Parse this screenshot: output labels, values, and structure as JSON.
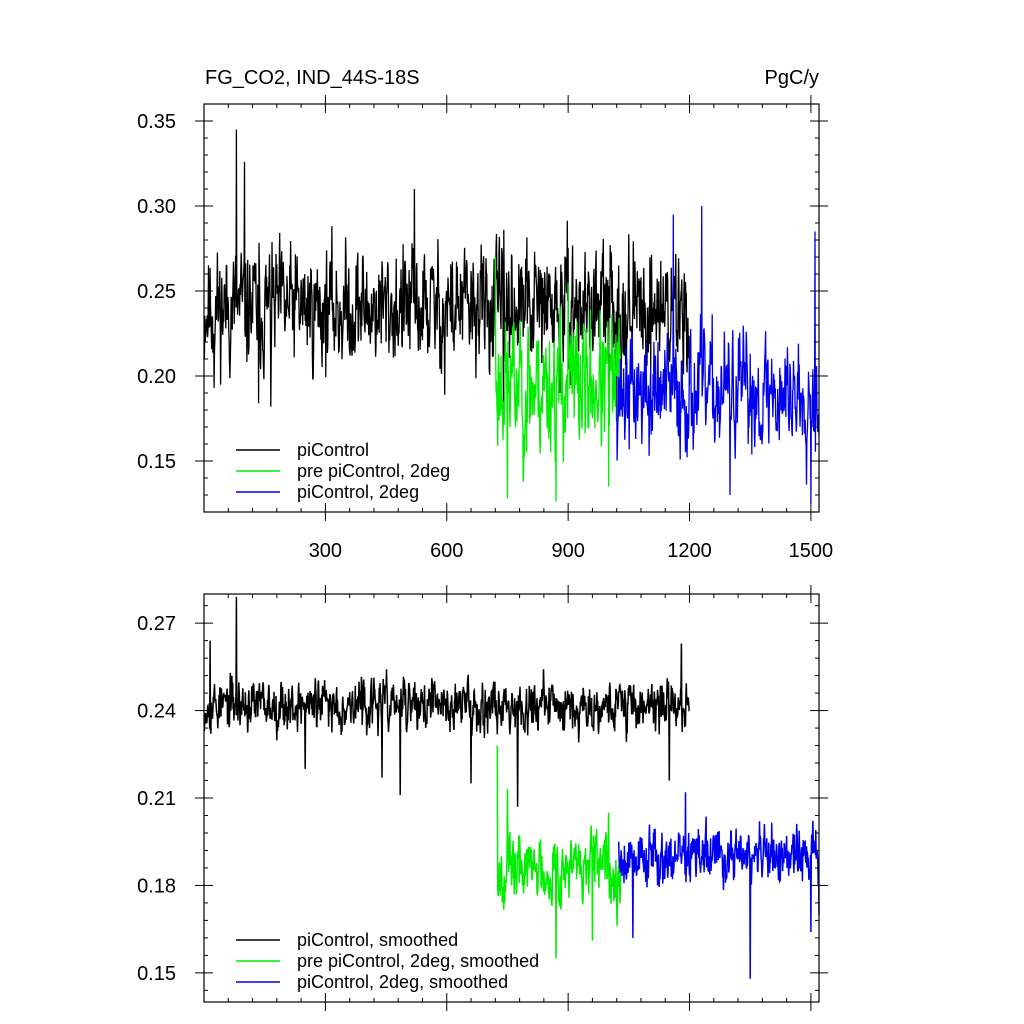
{
  "chart_data": [
    {
      "type": "line",
      "title_left": "FG_CO2, IND_44S-18S",
      "title_right": "PgC/y",
      "xlim": [
        0,
        1520
      ],
      "ylim": [
        0.12,
        0.36
      ],
      "xticks": [
        300,
        600,
        900,
        1200,
        1500
      ],
      "yticks": [
        0.15,
        0.2,
        0.25,
        0.3,
        0.35
      ],
      "ytick_labels": [
        "0.15",
        "0.20",
        "0.25",
        "0.30",
        "0.35"
      ],
      "legend_position": "bottom-left",
      "series": [
        {
          "name": "piControl",
          "color": "#000000",
          "x_range": [
            1,
            1200
          ],
          "mean": 0.24,
          "spread": 0.028,
          "seed": 11,
          "points": [
            [
              1,
              0.21
            ],
            [
              25,
              0.193
            ],
            [
              80,
              0.345
            ],
            [
              100,
              0.326
            ],
            [
              135,
              0.184
            ],
            [
              165,
              0.182
            ],
            [
              520,
              0.31
            ],
            [
              595,
              0.189
            ],
            [
              740,
              0.184
            ],
            [
              880,
              0.19
            ],
            [
              1000,
              0.195
            ],
            [
              1200,
              0.195
            ]
          ]
        },
        {
          "name": "pre piControl, 2deg",
          "color": "#00ee00",
          "x_range": [
            720,
            1030
          ],
          "mean": 0.195,
          "spread": 0.032,
          "seed": 23,
          "points": [
            [
              720,
              0.27
            ],
            [
              740,
              0.185
            ],
            [
              750,
              0.128
            ],
            [
              780,
              0.21
            ],
            [
              870,
              0.126
            ],
            [
              900,
              0.255
            ],
            [
              1000,
              0.135
            ],
            [
              1030,
              0.2
            ]
          ]
        },
        {
          "name": "piControl, 2deg",
          "color": "#0000ee",
          "x_range": [
            1020,
            1520
          ],
          "mean": 0.19,
          "spread": 0.027,
          "seed": 37,
          "points": [
            [
              1020,
              0.2
            ],
            [
              1100,
              0.153
            ],
            [
              1160,
              0.295
            ],
            [
              1230,
              0.3
            ],
            [
              1300,
              0.13
            ],
            [
              1500,
              0.125
            ],
            [
              1510,
              0.285
            ],
            [
              1520,
              0.165
            ]
          ]
        }
      ]
    },
    {
      "type": "line",
      "xlim": [
        0,
        1520
      ],
      "ylim": [
        0.14,
        0.28
      ],
      "xticks": [
        300,
        600,
        900,
        1200,
        1500
      ],
      "yticks": [
        0.15,
        0.18,
        0.21,
        0.24,
        0.27
      ],
      "ytick_labels": [
        "0.15",
        "0.18",
        "0.21",
        "0.24",
        "0.27"
      ],
      "legend_position": "bottom-left",
      "series": [
        {
          "name": "piControl, smoothed",
          "color": "#000000",
          "x_range": [
            1,
            1200
          ],
          "mean": 0.242,
          "spread": 0.007,
          "seed": 53,
          "points": [
            [
              1,
              0.233
            ],
            [
              15,
              0.264
            ],
            [
              80,
              0.279
            ],
            [
              150,
              0.24
            ],
            [
              250,
              0.22
            ],
            [
              440,
              0.217
            ],
            [
              485,
              0.211
            ],
            [
              660,
              0.215
            ],
            [
              775,
              0.207
            ],
            [
              1150,
              0.216
            ],
            [
              1180,
              0.263
            ],
            [
              1200,
              0.24
            ]
          ]
        },
        {
          "name": "pre piControl, 2deg, smoothed",
          "color": "#00ee00",
          "x_range": [
            725,
            1030
          ],
          "mean": 0.186,
          "spread": 0.009,
          "seed": 67,
          "points": [
            [
              725,
              0.228
            ],
            [
              735,
              0.19
            ],
            [
              750,
              0.213
            ],
            [
              760,
              0.18
            ],
            [
              870,
              0.155
            ],
            [
              960,
              0.161
            ],
            [
              1000,
              0.205
            ],
            [
              1030,
              0.19
            ]
          ]
        },
        {
          "name": "piControl, 2deg, smoothed",
          "color": "#0000ee",
          "x_range": [
            1025,
            1520
          ],
          "mean": 0.19,
          "spread": 0.008,
          "seed": 79,
          "points": [
            [
              1025,
              0.195
            ],
            [
              1060,
              0.162
            ],
            [
              1190,
              0.212
            ],
            [
              1350,
              0.148
            ],
            [
              1500,
              0.164
            ],
            [
              1520,
              0.17
            ]
          ]
        }
      ]
    }
  ]
}
